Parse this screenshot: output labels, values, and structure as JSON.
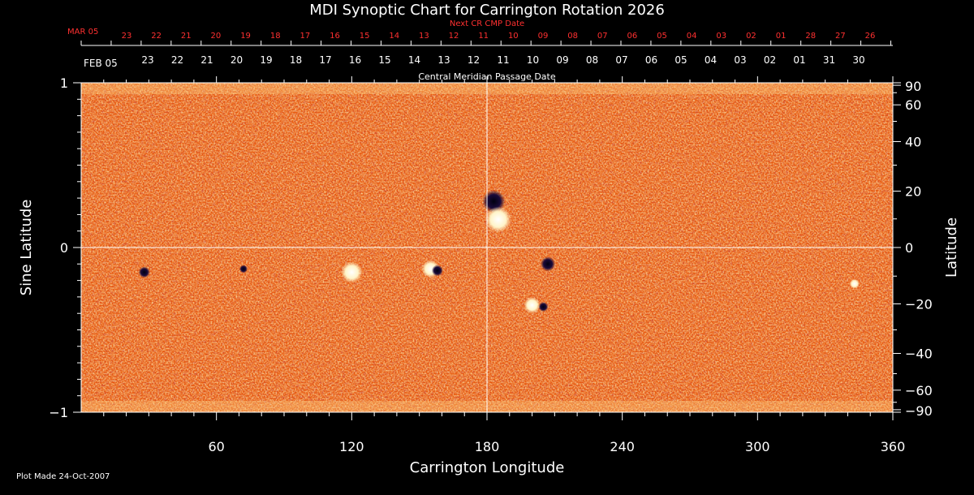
{
  "chart_data": {
    "type": "heatmap",
    "title": "MDI Synoptic Chart for Carrington Rotation 2026",
    "xlabel": "Carrington Longitude",
    "ylabel_left": "Sine Latitude",
    "ylabel_right": "Latitude",
    "xlim": [
      0,
      360
    ],
    "ylim": [
      -1,
      1
    ],
    "x_ticks": [
      "60",
      "120",
      "180",
      "240",
      "300",
      "360"
    ],
    "y_ticks_left": [
      "1",
      "0",
      "−1"
    ],
    "y_ticks_right": [
      "90",
      "60",
      "40",
      "20",
      "0",
      "−20",
      "−40",
      "−60",
      "−90"
    ],
    "top_axis": {
      "next_label": "Next CR CMP Date",
      "next_start": "MAR 05",
      "next_dates": [
        "23",
        "22",
        "21",
        "20",
        "19",
        "18",
        "17",
        "16",
        "15",
        "14",
        "13",
        "12",
        "11",
        "10",
        "09",
        "08",
        "07",
        "06",
        "05",
        "04",
        "03",
        "02",
        "01",
        "28",
        "27",
        "26"
      ],
      "cmp_label": "Central Meridian Passage Date",
      "cmp_start": "FEB 05",
      "cmp_dates": [
        "23",
        "22",
        "21",
        "20",
        "19",
        "18",
        "17",
        "16",
        "15",
        "14",
        "13",
        "12",
        "11",
        "10",
        "09",
        "08",
        "07",
        "06",
        "05",
        "04",
        "03",
        "02",
        "01",
        "31",
        "30"
      ]
    },
    "colors": {
      "background": "#e85a10",
      "positive": "#fff8e0",
      "negative": "#1a0a3a",
      "labels_red": "#ff3030"
    },
    "active_regions": [
      {
        "lon": 183,
        "sinlat": 0.28,
        "polarity": "negative",
        "size": 14
      },
      {
        "lon": 185,
        "sinlat": 0.17,
        "polarity": "positive",
        "size": 16
      },
      {
        "lon": 120,
        "sinlat": -0.15,
        "polarity": "positive",
        "size": 13
      },
      {
        "lon": 155,
        "sinlat": -0.13,
        "polarity": "positive",
        "size": 11
      },
      {
        "lon": 158,
        "sinlat": -0.14,
        "polarity": "negative",
        "size": 7
      },
      {
        "lon": 207,
        "sinlat": -0.1,
        "polarity": "negative",
        "size": 9
      },
      {
        "lon": 200,
        "sinlat": -0.35,
        "polarity": "positive",
        "size": 10
      },
      {
        "lon": 205,
        "sinlat": -0.36,
        "polarity": "negative",
        "size": 6
      },
      {
        "lon": 28,
        "sinlat": -0.15,
        "polarity": "negative",
        "size": 7
      },
      {
        "lon": 72,
        "sinlat": -0.13,
        "polarity": "negative",
        "size": 5
      },
      {
        "lon": 343,
        "sinlat": -0.22,
        "polarity": "positive",
        "size": 6
      }
    ]
  },
  "footer": {
    "plot_made": "Plot Made 24-Oct-2007"
  }
}
